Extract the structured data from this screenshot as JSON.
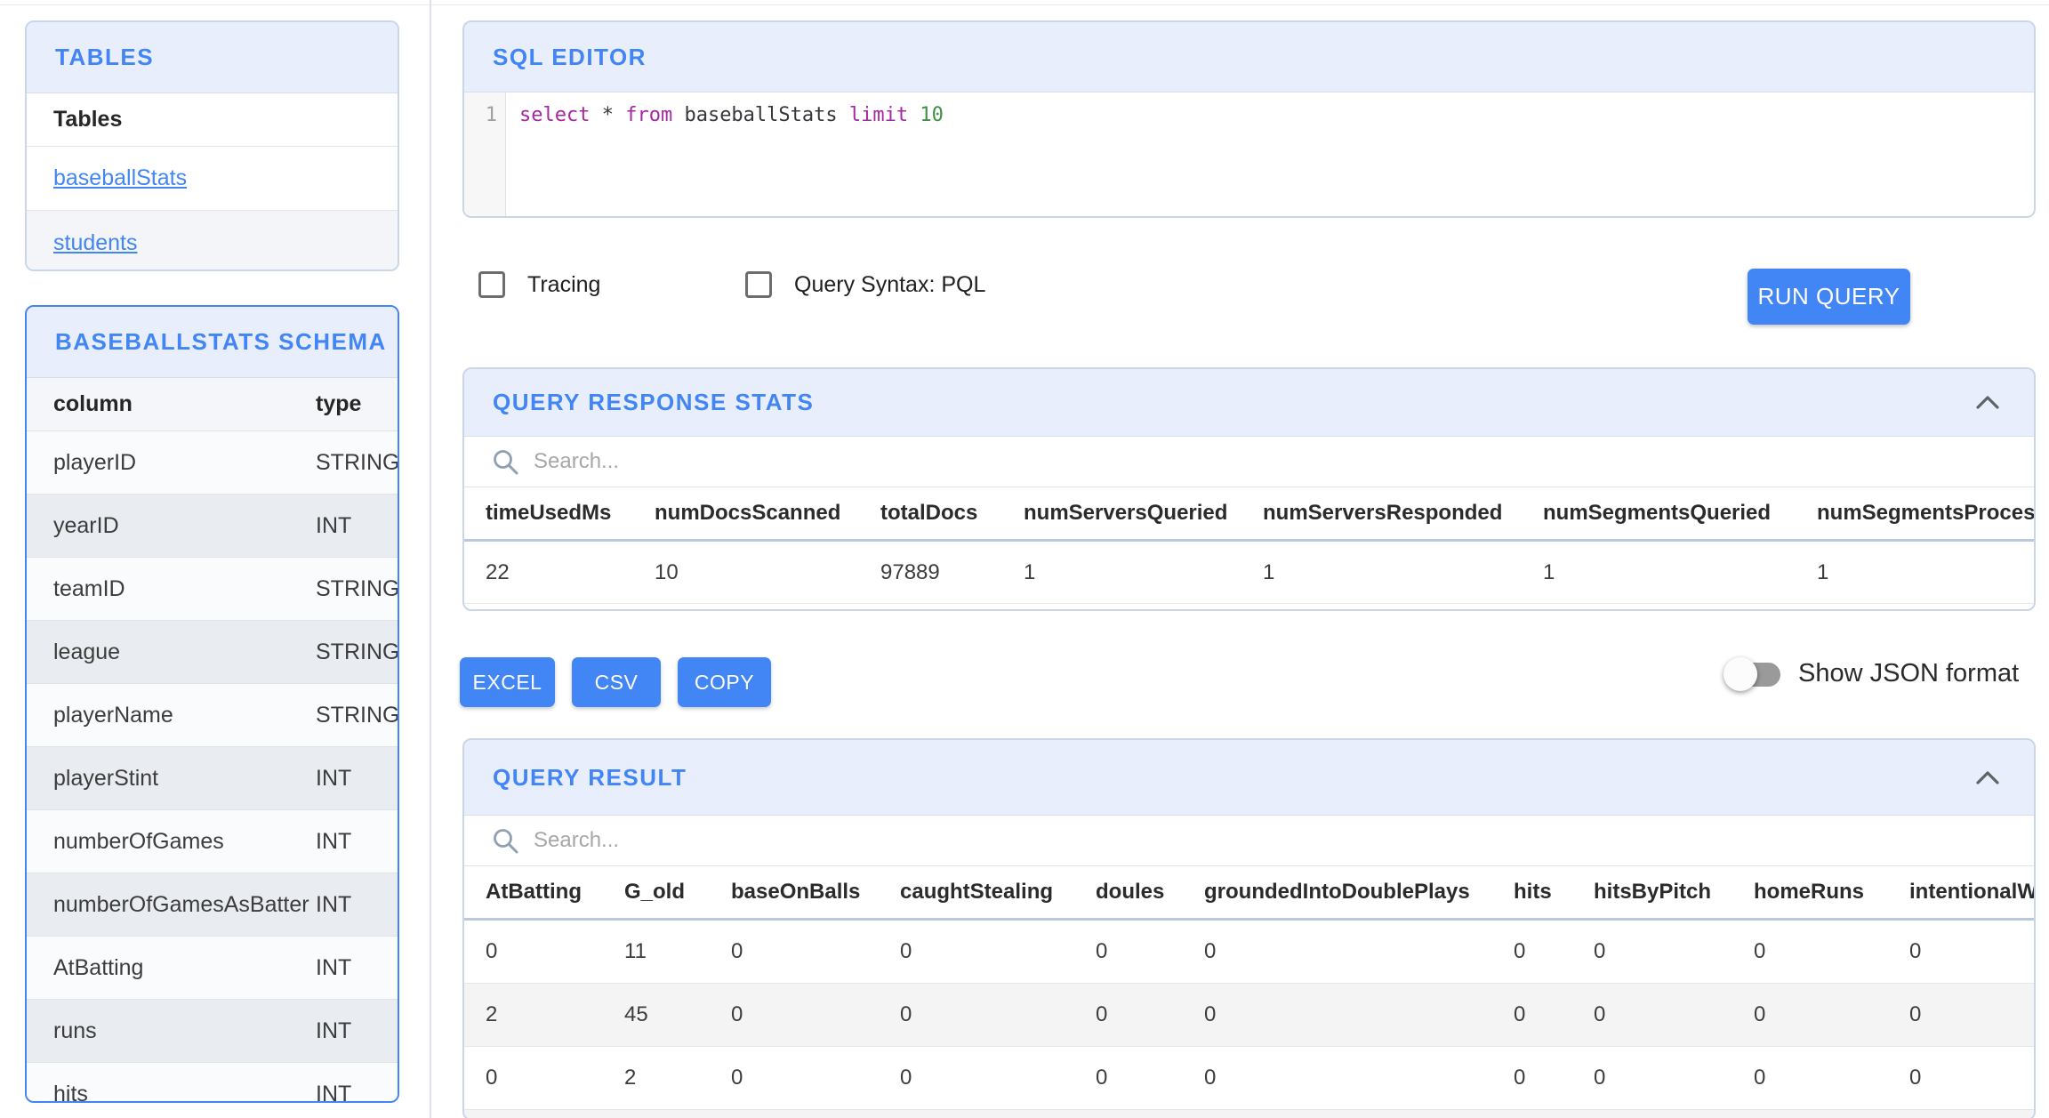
{
  "colors": {
    "accent": "#4285f4",
    "panel_header_bg": "#e8eefc",
    "selected_border": "#4285f4",
    "zebra_gray": "#e9edf2"
  },
  "sidebar": {
    "tables_panel": {
      "title": "TABLES",
      "header": "Tables",
      "items": [
        "baseballStats",
        "students"
      ]
    },
    "schema_panel": {
      "title": "BASEBALLSTATS SCHEMA",
      "columns": [
        "column",
        "type"
      ],
      "rows": [
        {
          "column": "playerID",
          "type": "STRING"
        },
        {
          "column": "yearID",
          "type": "INT"
        },
        {
          "column": "teamID",
          "type": "STRING"
        },
        {
          "column": "league",
          "type": "STRING"
        },
        {
          "column": "playerName",
          "type": "STRING"
        },
        {
          "column": "playerStint",
          "type": "INT"
        },
        {
          "column": "numberOfGames",
          "type": "INT"
        },
        {
          "column": "numberOfGamesAsBatter",
          "type": "INT"
        },
        {
          "column": "AtBatting",
          "type": "INT"
        },
        {
          "column": "runs",
          "type": "INT"
        },
        {
          "column": "hits",
          "type": "INT"
        }
      ]
    }
  },
  "sql_editor": {
    "title": "SQL EDITOR",
    "line_number": "1",
    "query_text": "select * from baseballStats limit 10",
    "tokens": [
      {
        "text": "select ",
        "type": "keyword"
      },
      {
        "text": "* ",
        "type": "plain"
      },
      {
        "text": "from ",
        "type": "keyword"
      },
      {
        "text": "baseballStats ",
        "type": "plain"
      },
      {
        "text": "limit ",
        "type": "keyword"
      },
      {
        "text": "10",
        "type": "number"
      }
    ]
  },
  "query_controls": {
    "tracing_label": "Tracing",
    "tracing_checked": false,
    "pql_label": "Query Syntax: PQL",
    "pql_checked": false,
    "run_button_label": "RUN QUERY"
  },
  "response_stats": {
    "title": "QUERY RESPONSE STATS",
    "search_placeholder": "Search...",
    "columns": [
      "timeUsedMs",
      "numDocsScanned",
      "totalDocs",
      "numServersQueried",
      "numServersResponded",
      "numSegmentsQueried",
      "numSegmentsProcessed"
    ],
    "rows": [
      [
        "22",
        "10",
        "97889",
        "1",
        "1",
        "1",
        "1"
      ]
    ]
  },
  "export_bar": {
    "excel_label": "EXCEL",
    "csv_label": "CSV",
    "copy_label": "COPY",
    "toggle_label": "Show JSON format",
    "toggle_state": "off"
  },
  "query_result": {
    "title": "QUERY RESULT",
    "search_placeholder": "Search...",
    "columns": [
      "AtBatting",
      "G_old",
      "baseOnBalls",
      "caughtStealing",
      "doules",
      "groundedIntoDoublePlays",
      "hits",
      "hitsByPitch",
      "homeRuns",
      "intentionalWalks"
    ],
    "rows": [
      [
        "0",
        "11",
        "0",
        "0",
        "0",
        "0",
        "0",
        "0",
        "0",
        "0"
      ],
      [
        "2",
        "45",
        "0",
        "0",
        "0",
        "0",
        "0",
        "0",
        "0",
        "0"
      ],
      [
        "0",
        "2",
        "0",
        "0",
        "0",
        "0",
        "0",
        "0",
        "0",
        "0"
      ]
    ],
    "partial_fourth_row_visible": true
  }
}
